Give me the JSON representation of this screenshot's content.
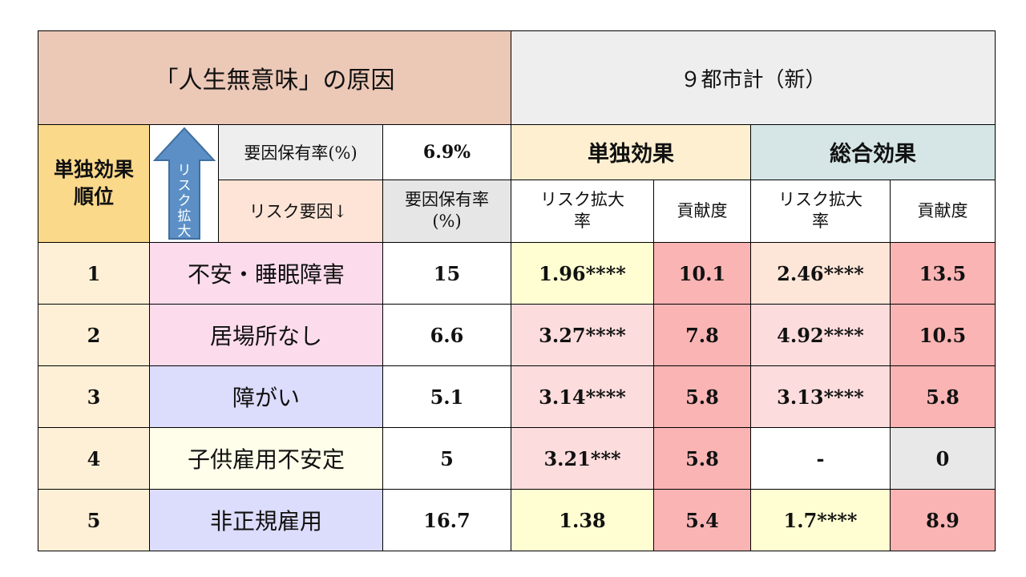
{
  "title_left": "「人生無意味」の原因",
  "title_right": "９都市計（新）",
  "rank_header": "単独効果\n順位",
  "arrow_label": "リスク拡大",
  "prevalence_label": "要因保有率(%)",
  "prevalence_value": "6.9%",
  "risk_factor_label": "リスク要因↓",
  "sub_prevalence_label": "要因保有率\n(%)",
  "single_effect_label": "単独効果",
  "total_effect_label": "総合効果",
  "risk_ratio_label": "リスク拡大\n率",
  "contribution_label": "貢献度",
  "rows": [
    {
      "rank": "1",
      "factor": "不安・睡眠障害",
      "prevalence": "15",
      "single_ratio": "1.96****",
      "single_contrib": "10.1",
      "total_ratio": "2.46****",
      "total_contrib": "13.5"
    },
    {
      "rank": "2",
      "factor": "居場所なし",
      "prevalence": "6.6",
      "single_ratio": "3.27****",
      "single_contrib": "7.8",
      "total_ratio": "4.92****",
      "total_contrib": "10.5"
    },
    {
      "rank": "3",
      "factor": "障がい",
      "prevalence": "5.1",
      "single_ratio": "3.14****",
      "single_contrib": "5.8",
      "total_ratio": "3.13****",
      "total_contrib": "5.8"
    },
    {
      "rank": "4",
      "factor": "子供雇用不安定",
      "prevalence": "5",
      "single_ratio": "3.21***",
      "single_contrib": "5.8",
      "total_ratio": "-",
      "total_contrib": "0"
    },
    {
      "rank": "5",
      "factor": "非正規雇用",
      "prevalence": "16.7",
      "single_ratio": "1.38",
      "single_contrib": "5.4",
      "total_ratio": "1.7****",
      "total_contrib": "8.9"
    }
  ],
  "colors": {
    "title_left_bg": "#ecc8b7",
    "rank_bg": "#fdf0d6",
    "factor_pink": "#fcdcec",
    "factor_blue": "#dcdcfc",
    "factor_yellow": "#fefeea",
    "contrib_red": "#fab4b4",
    "arrow_fill": "#5b8fc6"
  }
}
